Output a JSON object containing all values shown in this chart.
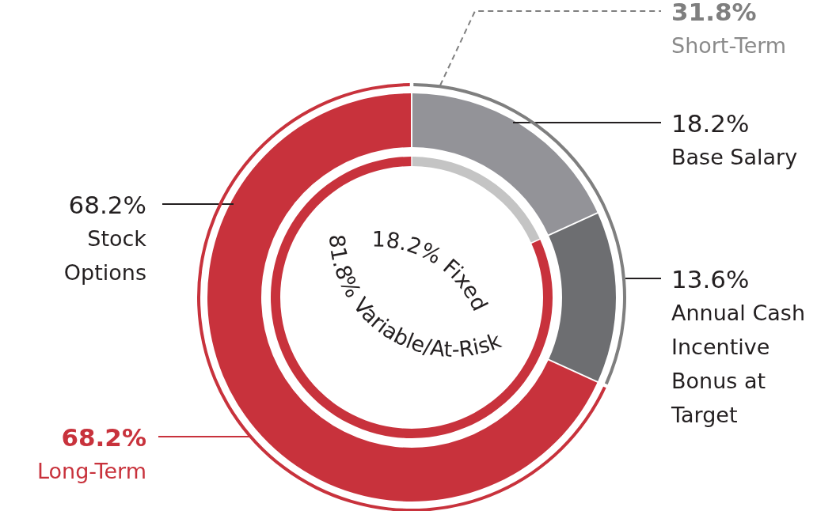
{
  "chart_data": [
    {
      "type": "donut",
      "categories": [
        "Base Salary",
        "Annual Cash Incentive Bonus at Target",
        "Stock Options"
      ],
      "values": [
        18.2,
        13.6,
        68.2
      ],
      "value_labels": [
        "18.2%",
        "13.6%",
        "68.2%"
      ],
      "colors": [
        "#939398",
        "#6d6e71",
        "#c8323c"
      ]
    },
    {
      "type": "donut",
      "categories": [
        "Short-Term",
        "Long-Term"
      ],
      "values": [
        31.8,
        68.2
      ],
      "value_labels": [
        "31.8%",
        "68.2%"
      ],
      "colors": [
        "#7f7f7f",
        "#c8323c"
      ]
    },
    {
      "type": "donut",
      "categories": [
        "Fixed",
        "Variable/At-Risk"
      ],
      "values": [
        18.2,
        81.8
      ],
      "value_labels": [
        "18.2%",
        "81.8%"
      ],
      "colors": [
        "#c4c4c4",
        "#c8323c"
      ]
    }
  ]
}
